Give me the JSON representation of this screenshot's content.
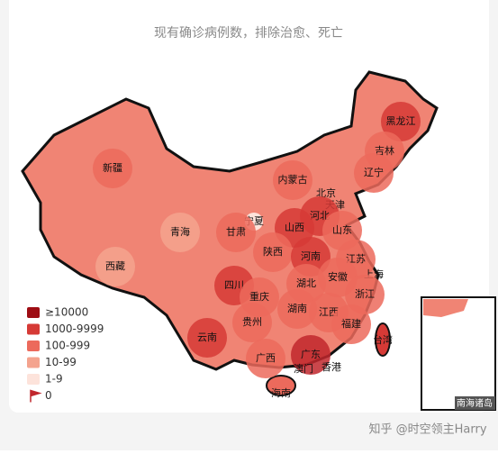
{
  "subtitle": "现有确诊病例数，排除治愈、死亡",
  "regions": [
    {
      "label": "黑龙江",
      "color": "#d63a36"
    },
    {
      "label": "吉林",
      "color": "#ec6a5c"
    },
    {
      "label": "辽宁",
      "color": "#ec6a5c"
    },
    {
      "label": "内蒙古",
      "color": "#ec6a5c"
    },
    {
      "label": "新疆",
      "color": "#ec6a5c"
    },
    {
      "label": "北京",
      "color": "#ec6a5c"
    },
    {
      "label": "天津",
      "color": "#ec6a5c"
    },
    {
      "label": "河北",
      "color": "#d63a36"
    },
    {
      "label": "宁夏",
      "color": "#fde3db"
    },
    {
      "label": "甘肃",
      "color": "#ec6a5c"
    },
    {
      "label": "青海",
      "color": "#f4a38e"
    },
    {
      "label": "山西",
      "color": "#d63a36"
    },
    {
      "label": "山东",
      "color": "#ec6a5c"
    },
    {
      "label": "陕西",
      "color": "#ec6a5c"
    },
    {
      "label": "河南",
      "color": "#d63a36"
    },
    {
      "label": "江苏",
      "color": "#ec6a5c"
    },
    {
      "label": "西藏",
      "color": "#f4a38e"
    },
    {
      "label": "安徽",
      "color": "#ec6a5c"
    },
    {
      "label": "上海",
      "color": "#d63a36"
    },
    {
      "label": "四川",
      "color": "#d63a36"
    },
    {
      "label": "湖北",
      "color": "#ec6a5c"
    },
    {
      "label": "重庆",
      "color": "#ec6a5c"
    },
    {
      "label": "浙江",
      "color": "#ec6a5c"
    },
    {
      "label": "贵州",
      "color": "#ec6a5c"
    },
    {
      "label": "湖南",
      "color": "#ec6a5c"
    },
    {
      "label": "江西",
      "color": "#ec6a5c"
    },
    {
      "label": "福建",
      "color": "#ec6a5c"
    },
    {
      "label": "云南",
      "color": "#d63a36"
    },
    {
      "label": "广西",
      "color": "#ec6a5c"
    },
    {
      "label": "广东",
      "color": "#c1272d"
    },
    {
      "label": "台湾",
      "color": "#d63a36"
    },
    {
      "label": "澳门",
      "color": "#ec6a5c"
    },
    {
      "label": "香港",
      "color": "#d63a36"
    },
    {
      "label": "海南",
      "color": "#ec6a5c"
    }
  ],
  "legend": [
    {
      "label": "≥10000",
      "color": "#9e0d14"
    },
    {
      "label": "1000-9999",
      "color": "#d63a36"
    },
    {
      "label": "100-999",
      "color": "#ec6a5c"
    },
    {
      "label": "10-99",
      "color": "#f4a38e"
    },
    {
      "label": "1-9",
      "color": "#fde3db"
    },
    {
      "label": "0",
      "color": "#c1272d"
    }
  ],
  "inset_label": "南海诸岛",
  "watermark": "知乎 @时空领主Harry"
}
